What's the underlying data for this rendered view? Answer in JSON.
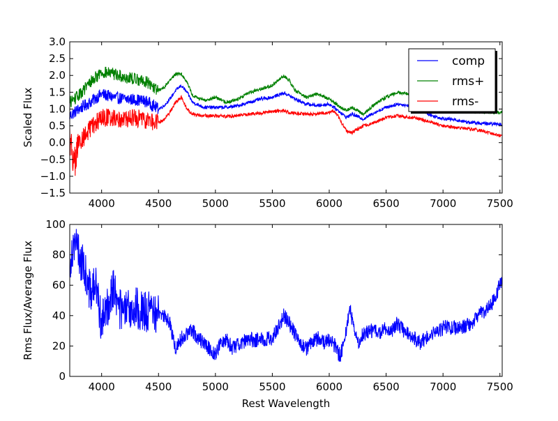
{
  "chart_data": [
    {
      "type": "line",
      "ylabel": "Scaled Flux",
      "xlabel": "",
      "xlim": [
        3720,
        7520
      ],
      "ylim": [
        -1.5,
        3.0
      ],
      "xticks": [
        "4000",
        "4500",
        "5000",
        "5500",
        "6000",
        "6500",
        "7000",
        "7500"
      ],
      "yticks": [
        "−1.5",
        "−1.0",
        "−0.5",
        "0.0",
        "0.5",
        "1.0",
        "1.5",
        "2.0",
        "2.5",
        "3.0"
      ],
      "legend_position": "top-right",
      "series": [
        {
          "name": "comp",
          "color": "#0000ff",
          "x": [
            3720,
            3800,
            3900,
            4000,
            4100,
            4200,
            4300,
            4400,
            4500,
            4550,
            4600,
            4650,
            4700,
            4750,
            4800,
            4900,
            5000,
            5100,
            5200,
            5300,
            5400,
            5500,
            5600,
            5650,
            5700,
            5800,
            5900,
            6000,
            6100,
            6150,
            6200,
            6300,
            6400,
            6500,
            6600,
            6700,
            6800,
            6900,
            7000,
            7100,
            7200,
            7300,
            7400,
            7520
          ],
          "y": [
            0.8,
            1.0,
            1.2,
            1.45,
            1.35,
            1.3,
            1.28,
            1.22,
            1.0,
            1.1,
            1.3,
            1.55,
            1.7,
            1.5,
            1.2,
            1.05,
            1.05,
            1.05,
            1.1,
            1.2,
            1.3,
            1.35,
            1.48,
            1.4,
            1.3,
            1.15,
            1.1,
            1.15,
            0.9,
            0.75,
            0.85,
            0.7,
            0.9,
            1.05,
            1.15,
            1.1,
            1.0,
            0.8,
            0.72,
            0.68,
            0.62,
            0.58,
            0.56,
            0.55
          ]
        },
        {
          "name": "rms+",
          "color": "#008000",
          "x": [
            3720,
            3800,
            3900,
            4000,
            4100,
            4200,
            4300,
            4400,
            4500,
            4550,
            4600,
            4650,
            4700,
            4750,
            4800,
            4900,
            5000,
            5100,
            5200,
            5300,
            5400,
            5500,
            5600,
            5650,
            5700,
            5800,
            5900,
            6000,
            6100,
            6150,
            6200,
            6300,
            6400,
            6500,
            6600,
            6700,
            6800,
            6900,
            7000,
            7100,
            7200,
            7300,
            7400,
            7520
          ],
          "y": [
            1.2,
            1.4,
            1.8,
            2.1,
            2.05,
            1.95,
            1.9,
            1.8,
            1.55,
            1.65,
            1.85,
            2.05,
            2.05,
            1.8,
            1.4,
            1.25,
            1.35,
            1.2,
            1.3,
            1.5,
            1.6,
            1.7,
            2.0,
            1.85,
            1.55,
            1.35,
            1.45,
            1.3,
            1.05,
            0.95,
            1.05,
            0.85,
            1.15,
            1.35,
            1.5,
            1.45,
            1.35,
            1.2,
            1.05,
            1.0,
            0.95,
            0.92,
            0.9,
            0.9
          ]
        },
        {
          "name": "rms-",
          "color": "#ff0000",
          "x": [
            3720,
            3760,
            3800,
            3900,
            4000,
            4100,
            4200,
            4300,
            4400,
            4500,
            4550,
            4600,
            4650,
            4700,
            4750,
            4800,
            4900,
            5000,
            5100,
            5200,
            5300,
            5400,
            5500,
            5600,
            5650,
            5700,
            5800,
            5900,
            6000,
            6050,
            6100,
            6150,
            6200,
            6300,
            6400,
            6500,
            6600,
            6700,
            6800,
            6900,
            7000,
            7100,
            7200,
            7300,
            7400,
            7520
          ],
          "y": [
            0.2,
            -0.7,
            0.0,
            0.4,
            0.75,
            0.75,
            0.7,
            0.72,
            0.68,
            0.6,
            0.7,
            0.9,
            1.2,
            1.35,
            1.0,
            0.85,
            0.8,
            0.8,
            0.78,
            0.8,
            0.85,
            0.88,
            0.92,
            0.95,
            0.9,
            0.88,
            0.85,
            0.85,
            0.9,
            0.95,
            0.65,
            0.35,
            0.3,
            0.5,
            0.6,
            0.75,
            0.8,
            0.75,
            0.7,
            0.6,
            0.5,
            0.45,
            0.42,
            0.38,
            0.3,
            0.2
          ]
        }
      ]
    },
    {
      "type": "line",
      "xlabel": "Rest Wavelength",
      "ylabel": "Rms Flux/Average Flux",
      "xlim": [
        3720,
        7520
      ],
      "ylim": [
        0,
        100
      ],
      "xticks": [
        "4000",
        "4500",
        "5000",
        "5500",
        "6000",
        "6500",
        "7000",
        "7500"
      ],
      "yticks": [
        "0",
        "20",
        "40",
        "60",
        "80",
        "100"
      ],
      "series": [
        {
          "color": "#0000ff",
          "x": [
            3720,
            3760,
            3800,
            3850,
            3900,
            3950,
            4000,
            4050,
            4100,
            4150,
            4200,
            4300,
            4400,
            4500,
            4550,
            4600,
            4650,
            4700,
            4750,
            4800,
            4850,
            4900,
            4950,
            5000,
            5050,
            5100,
            5150,
            5200,
            5300,
            5400,
            5500,
            5550,
            5600,
            5650,
            5700,
            5750,
            5800,
            5850,
            5900,
            5950,
            6000,
            6050,
            6080,
            6100,
            6150,
            6180,
            6200,
            6250,
            6300,
            6350,
            6400,
            6450,
            6500,
            6550,
            6600,
            6650,
            6700,
            6750,
            6800,
            6850,
            6900,
            6950,
            7000,
            7100,
            7200,
            7250,
            7300,
            7400,
            7450,
            7520
          ],
          "y": [
            75,
            90,
            80,
            70,
            55,
            60,
            35,
            45,
            60,
            45,
            42,
            45,
            42,
            42,
            40,
            35,
            18,
            25,
            28,
            30,
            25,
            22,
            18,
            15,
            22,
            25,
            18,
            22,
            24,
            24,
            25,
            32,
            40,
            35,
            28,
            22,
            18,
            22,
            25,
            22,
            24,
            20,
            15,
            14,
            30,
            45,
            38,
            22,
            28,
            30,
            30,
            28,
            32,
            30,
            35,
            30,
            28,
            25,
            22,
            25,
            28,
            30,
            32,
            32,
            33,
            35,
            40,
            45,
            50,
            65
          ]
        }
      ]
    }
  ]
}
